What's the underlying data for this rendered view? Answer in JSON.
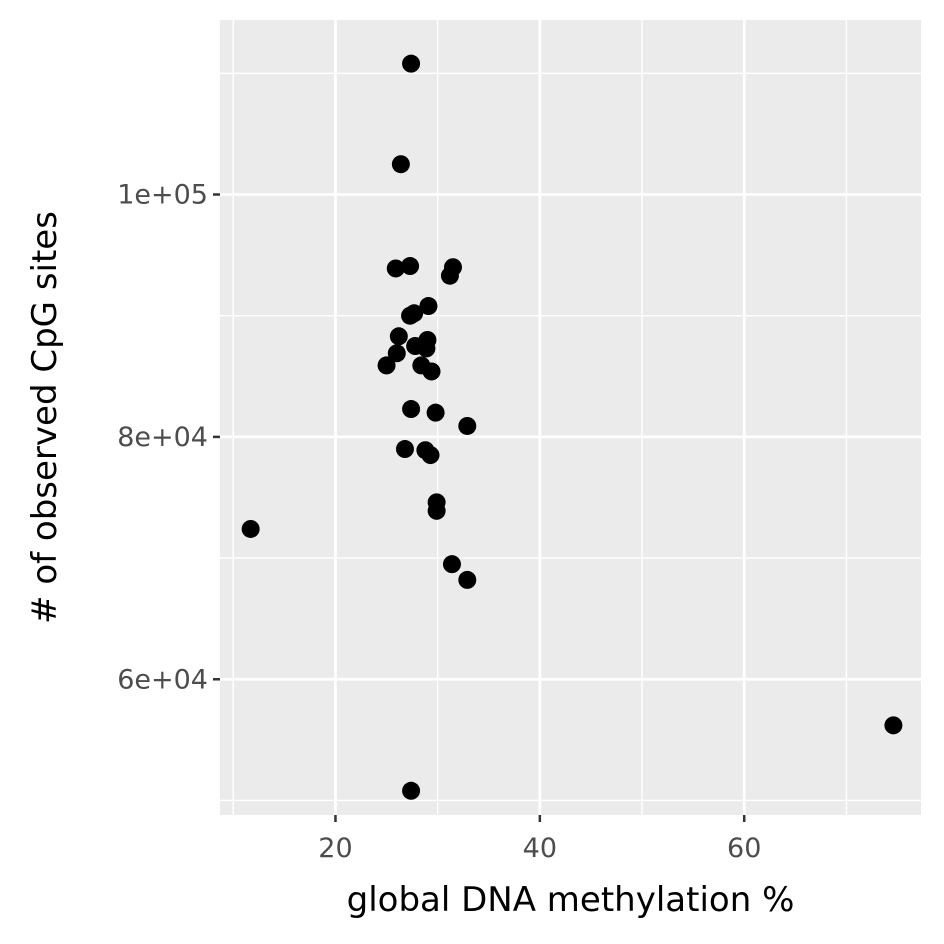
{
  "chart_data": {
    "type": "scatter",
    "xlabel": "global DNA methylation %",
    "ylabel": "# of observed CpG sites",
    "xlim": [
      8.7,
      77.3
    ],
    "ylim": [
      48800,
      114400
    ],
    "x_ticks": [
      20,
      40,
      60
    ],
    "x_tick_labels": [
      "20",
      "40",
      "60"
    ],
    "x_minor_ticks": [
      10,
      30,
      50,
      70
    ],
    "y_ticks": [
      60000,
      80000,
      100000
    ],
    "y_tick_labels": [
      "6e+04",
      "8e+04",
      "1e+05"
    ],
    "y_minor_ticks": [
      50000,
      70000,
      90000,
      110000
    ],
    "grid": true,
    "panel_background": "#ebebeb",
    "grid_color": "#ffffff",
    "point_color": "#000000",
    "points": [
      {
        "x": 27.4,
        "y": 110800
      },
      {
        "x": 26.4,
        "y": 102500
      },
      {
        "x": 25.9,
        "y": 93900
      },
      {
        "x": 27.3,
        "y": 94100
      },
      {
        "x": 31.5,
        "y": 94000
      },
      {
        "x": 31.2,
        "y": 93300
      },
      {
        "x": 29.1,
        "y": 90800
      },
      {
        "x": 27.7,
        "y": 90200
      },
      {
        "x": 27.3,
        "y": 90000
      },
      {
        "x": 26.2,
        "y": 88300
      },
      {
        "x": 29.0,
        "y": 88000
      },
      {
        "x": 27.8,
        "y": 87500
      },
      {
        "x": 28.9,
        "y": 87300
      },
      {
        "x": 26.0,
        "y": 86900
      },
      {
        "x": 25.0,
        "y": 85900
      },
      {
        "x": 28.4,
        "y": 85900
      },
      {
        "x": 29.4,
        "y": 85400
      },
      {
        "x": 27.4,
        "y": 82300
      },
      {
        "x": 29.8,
        "y": 82000
      },
      {
        "x": 32.9,
        "y": 80900
      },
      {
        "x": 26.8,
        "y": 79000
      },
      {
        "x": 28.8,
        "y": 78900
      },
      {
        "x": 29.3,
        "y": 78500
      },
      {
        "x": 29.9,
        "y": 74600
      },
      {
        "x": 29.9,
        "y": 73900
      },
      {
        "x": 11.7,
        "y": 72400
      },
      {
        "x": 31.4,
        "y": 69500
      },
      {
        "x": 32.9,
        "y": 68200
      },
      {
        "x": 74.6,
        "y": 56200
      },
      {
        "x": 27.4,
        "y": 50800
      }
    ]
  }
}
